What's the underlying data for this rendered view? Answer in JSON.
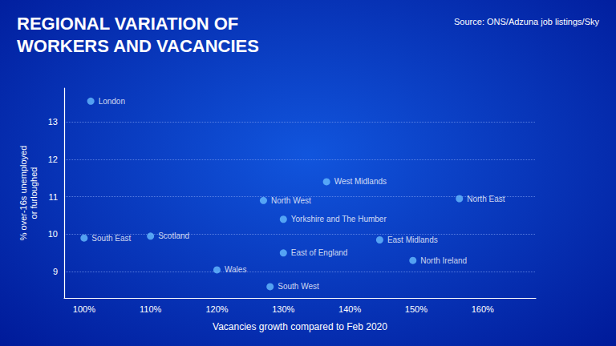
{
  "chart_data": {
    "type": "scatter",
    "title": "REGIONAL VARIATION OF\nWORKERS AND VACANCIES",
    "source": "Source: ONS/Adzuna job listings/Sky",
    "xlabel": "Vacancies growth compared to Feb 2020",
    "ylabel": "% over-16s unemployed\nor furloughed",
    "labels": [
      "London",
      "South East",
      "Scotland",
      "Wales",
      "North West",
      "Yorkshire and The Humber",
      "East of England",
      "South West",
      "West Midlands",
      "East Midlands",
      "North Ireland",
      "North East"
    ],
    "x": [
      1.01,
      1.0,
      1.1,
      1.2,
      1.27,
      1.3,
      1.3,
      1.28,
      1.365,
      1.445,
      1.495,
      1.565
    ],
    "values": [
      13.55,
      9.9,
      9.95,
      9.05,
      10.9,
      10.4,
      9.5,
      8.6,
      11.4,
      9.85,
      9.3,
      10.95
    ],
    "color": "#66bbff",
    "xlim": [
      0.97,
      1.68
    ],
    "ylim": [
      8.3,
      13.9
    ],
    "xticks": [
      {
        "value": 1.0,
        "label": "100%"
      },
      {
        "value": 1.1,
        "label": "110%"
      },
      {
        "value": 1.2,
        "label": "120%"
      },
      {
        "value": 1.3,
        "label": "130%"
      },
      {
        "value": 1.4,
        "label": "140%"
      },
      {
        "value": 1.5,
        "label": "150%"
      },
      {
        "value": 1.6,
        "label": "160%"
      }
    ],
    "yticks": [
      9,
      10,
      11,
      12,
      13
    ],
    "grid": "y"
  }
}
